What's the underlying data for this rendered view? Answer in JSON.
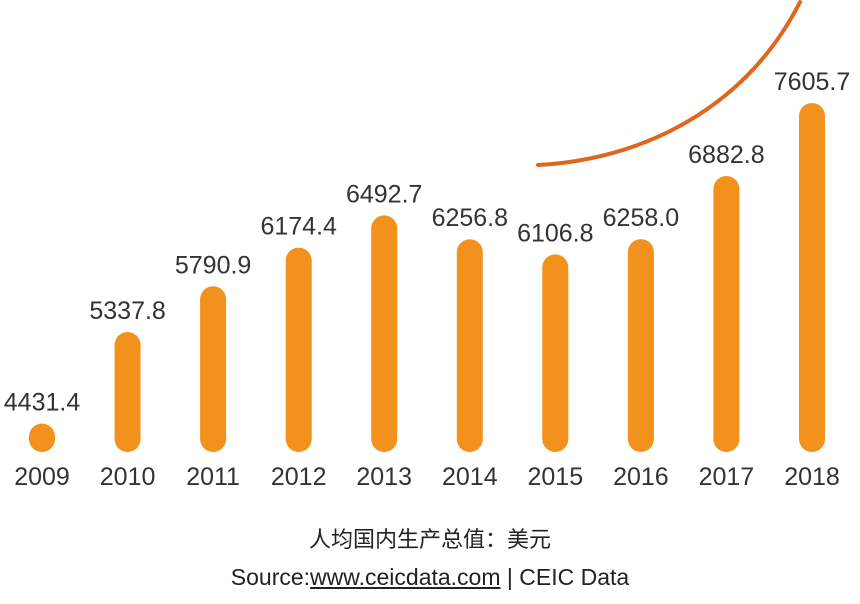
{
  "chart_data": {
    "type": "bar",
    "title": "",
    "xlabel": "",
    "ylabel": "",
    "categories": [
      "2009",
      "2010",
      "2011",
      "2012",
      "2013",
      "2014",
      "2015",
      "2016",
      "2017",
      "2018"
    ],
    "values": [
      4431.4,
      5337.8,
      5790.9,
      6174.4,
      6492.7,
      6256.8,
      6106.8,
      6258.0,
      6882.8,
      7605.7
    ],
    "value_labels": [
      "4431.4",
      "5337.8",
      "5790.9",
      "6174.4",
      "6492.7",
      "6256.8",
      "6106.8",
      "6258.0",
      "6882.8",
      "7605.7"
    ],
    "ylim": [
      4150,
      7900
    ],
    "grid": false,
    "legend": "none",
    "bar_color": "#F2911B",
    "trend_curve_color": "#E0661E",
    "text_color": "#333333"
  },
  "captions": {
    "unit": "人均国内生产总值：美元",
    "source_prefix": "Source:",
    "source_link": "www.ceicdata.com",
    "source_suffix": " | CEIC Data"
  }
}
